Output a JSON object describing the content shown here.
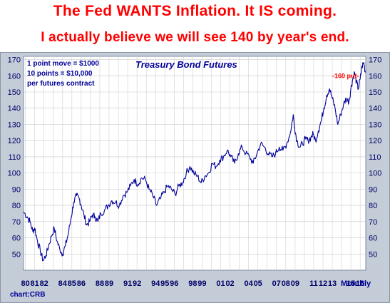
{
  "headline": {
    "line1": "The Fed WANTS Inflation. It IS coming.",
    "line2": "I actually believe we will see 140 by year's end."
  },
  "colors": {
    "headline": "#ff0000",
    "series": "#000099",
    "panel": "#ffffff",
    "frame": "#c3ccd7",
    "annotation_red": "#ff0000"
  },
  "chart_data": {
    "type": "line",
    "title": "Treasury Bond Futures",
    "notes": [
      "1 point move = $1000",
      "10 points = $10,000",
      "per futures contract"
    ],
    "annotation": "-160 put-",
    "annotation_value": 160,
    "xlabel": "Monthly",
    "ylim": [
      40,
      172
    ],
    "yticks": [
      50,
      60,
      70,
      80,
      90,
      100,
      110,
      120,
      130,
      140,
      150,
      160,
      170
    ],
    "grid": true,
    "xtick_text": [
      "80",
      "81",
      "82",
      "84",
      "85",
      "86",
      "88",
      "89",
      "91",
      "92",
      "94",
      "95",
      "96",
      "98",
      "99",
      "01",
      "02",
      "04",
      "05",
      "07",
      "08",
      "09",
      "11",
      "12",
      "13",
      "15",
      "16"
    ],
    "xtick_years": [
      1980,
      1981,
      1982,
      1984,
      1985,
      1986,
      1988,
      1989,
      1991,
      1992,
      1994,
      1995,
      1996,
      1998,
      1999,
      2001,
      2002,
      2004,
      2005,
      2007,
      2008,
      2009,
      2011,
      2012,
      2013,
      2015,
      2016
    ],
    "xlim": [
      1979.8,
      2016.6
    ],
    "series": [
      {
        "x": [
          1979.8,
          1980.2,
          1980.5,
          1980.8,
          1981.0,
          1981.3,
          1981.6,
          1981.9,
          1982.2,
          1982.5,
          1982.8,
          1983.1,
          1983.4,
          1983.7,
          1984.0,
          1984.3,
          1984.6,
          1984.9,
          1985.2,
          1985.5,
          1985.8,
          1986.0,
          1986.3,
          1986.6,
          1986.9,
          1987.2,
          1987.5,
          1987.8,
          1988.1,
          1988.5,
          1988.9,
          1989.3,
          1989.7,
          1990.1,
          1990.5,
          1990.9,
          1991.3,
          1991.7,
          1992.1,
          1992.5,
          1992.9,
          1993.3,
          1993.7,
          1994.1,
          1994.5,
          1994.9,
          1995.3,
          1995.7,
          1996.1,
          1996.5,
          1996.9,
          1997.3,
          1997.7,
          1998.1,
          1998.5,
          1998.9,
          1999.3,
          1999.7,
          2000.1,
          2000.5,
          2000.9,
          2001.3,
          2001.7,
          2002.1,
          2002.5,
          2002.9,
          2003.3,
          2003.7,
          2004.1,
          2004.5,
          2004.9,
          2005.3,
          2005.7,
          2006.1,
          2006.5,
          2006.9,
          2007.3,
          2007.7,
          2008.1,
          2008.5,
          2008.8,
          2008.95,
          2009.2,
          2009.5,
          2009.8,
          2010.1,
          2010.4,
          2010.7,
          2010.95,
          2011.2,
          2011.5,
          2011.8,
          2012.1,
          2012.4,
          2012.7,
          2013.0,
          2013.3,
          2013.6,
          2013.9,
          2014.2,
          2014.5,
          2014.8,
          2015.0,
          2015.2,
          2015.4,
          2015.6,
          2015.8,
          2016.0,
          2016.2,
          2016.4,
          2016.55
        ],
        "y": [
          76,
          73,
          70,
          64,
          66,
          58,
          52,
          46,
          49,
          55,
          61,
          66,
          58,
          53,
          50,
          55,
          62,
          72,
          82,
          86,
          84,
          80,
          74,
          68,
          70,
          74,
          73,
          70,
          75,
          77,
          80,
          83,
          82,
          80,
          86,
          88,
          92,
          96,
          93,
          97,
          96,
          90,
          86,
          80,
          84,
          88,
          92,
          90,
          87,
          92,
          94,
          100,
          104,
          100,
          98,
          94,
          98,
          100,
          106,
          104,
          108,
          110,
          114,
          110,
          106,
          112,
          116,
          112,
          110,
          106,
          112,
          118,
          116,
          112,
          110,
          112,
          116,
          114,
          118,
          125,
          136,
          128,
          120,
          116,
          118,
          121,
          120,
          122,
          124,
          120,
          126,
          132,
          140,
          148,
          152,
          146,
          140,
          130,
          136,
          142,
          146,
          144,
          152,
          158,
          162,
          156,
          152,
          158,
          166,
          168,
          162
        ]
      }
    ]
  }
}
